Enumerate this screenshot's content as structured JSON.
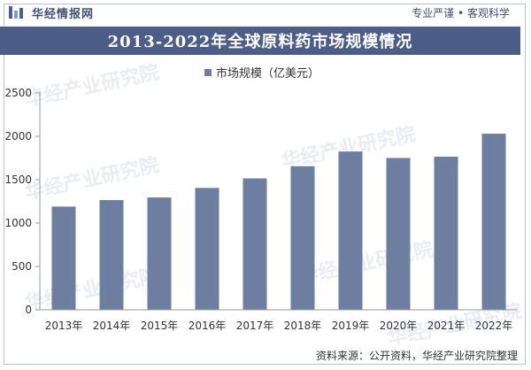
{
  "header": {
    "brand": "华经情报网",
    "tagline": "专业严谨 • 客观科学"
  },
  "colors": {
    "bar": "#6d7ea0",
    "title_bg": "#4c5d88",
    "axis": "#999999",
    "text": "#333333"
  },
  "watermark": "华经产业研究院",
  "chart_data": {
    "type": "bar",
    "title": "2013-2022年全球原料药市场规模情况",
    "legend": "市场规模（亿美元）",
    "categories": [
      "2013年",
      "2014年",
      "2015年",
      "2016年",
      "2017年",
      "2018年",
      "2019年",
      "2020年",
      "2021年",
      "2022年"
    ],
    "series": [
      {
        "name": "市场规模（亿美元）",
        "values": [
          1190,
          1265,
          1295,
          1405,
          1515,
          1655,
          1825,
          1750,
          1765,
          2030
        ]
      }
    ],
    "ylim": [
      0,
      2500
    ],
    "yticks": [
      "0",
      "500",
      "1000",
      "1500",
      "2000",
      "2500"
    ],
    "yticks_values": [
      0,
      500,
      1000,
      1500,
      2000,
      2500
    ],
    "xlabel": "",
    "ylabel": ""
  },
  "footer": {
    "source": "资料来源：公开资料，华经产业研究院整理"
  }
}
